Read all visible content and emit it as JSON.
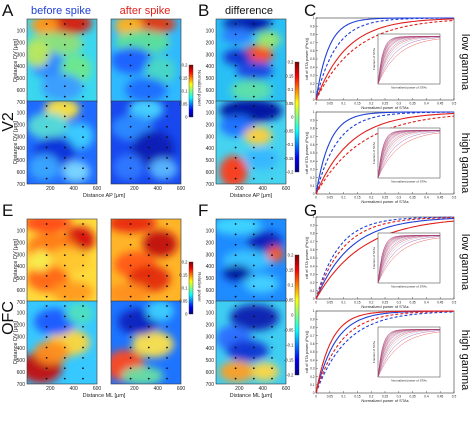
{
  "panel_letters": {
    "A": "A",
    "B": "B",
    "C": "C",
    "E": "E",
    "F": "F",
    "G": "G"
  },
  "col_titles": {
    "before": "before spike",
    "after": "after spike",
    "diff": "difference"
  },
  "row_labels": {
    "v2": "V2",
    "ofc": "OFC"
  },
  "band_labels": {
    "low": "low gamma",
    "high": "high gamma"
  },
  "axis_labels": {
    "dv": "Distance DV [μm]",
    "ap": "Distance AP [μm]",
    "ml": "Distance ML [μm]",
    "cdf_y": "cdf of STA power (Pr(x))",
    "cdf_x": "Normalized power of STAs",
    "inset_y": "Fraction of STAs",
    "inset_x": "Normalized power of STAs"
  },
  "colorbar_labels": {
    "v2": "Normalized power",
    "ofc": "Relative power"
  },
  "colors": {
    "before": "#1f3fd8",
    "after": "#e0201b",
    "letters": "#111111",
    "inset_line": "#8c2a8c"
  },
  "chart_data": [
    {
      "id": "heatmaps",
      "type": "heatmap",
      "x_ticks": [
        "200",
        "400",
        "600"
      ],
      "y_ticks": [
        "100",
        "200",
        "300",
        "400",
        "500",
        "600",
        "700"
      ],
      "xlim": [
        0,
        600
      ],
      "ylim": [
        700,
        0
      ],
      "colorbar_ticks_main": [
        "0.2",
        "0.15",
        "0.1",
        "0.05",
        "0"
      ],
      "colorbar_ticks_diff": [
        "0.2",
        "0.15",
        "0.1",
        "0.05",
        "0",
        "-0.05",
        "-0.1",
        "-0.15",
        "-0.2"
      ]
    },
    {
      "id": "cdf",
      "type": "line",
      "y_ticks": [
        "0",
        "0.1",
        "0.2",
        "0.3",
        "0.4",
        "0.5",
        "0.6",
        "0.7",
        "0.8",
        "0.9",
        "1"
      ],
      "x_ticks": [
        "0",
        "0.05",
        "0.1",
        "0.15",
        "0.2",
        "0.25",
        "0.3",
        "0.35",
        "0.4",
        "0.45",
        "0.5"
      ],
      "xlim": [
        0,
        0.5
      ],
      "ylim": [
        0,
        1
      ],
      "series": [
        {
          "style": "solid",
          "color_key": "before"
        },
        {
          "style": "dashed",
          "color_key": "before"
        },
        {
          "style": "solid",
          "color_key": "after"
        },
        {
          "style": "dashed",
          "color_key": "after"
        }
      ]
    }
  ]
}
